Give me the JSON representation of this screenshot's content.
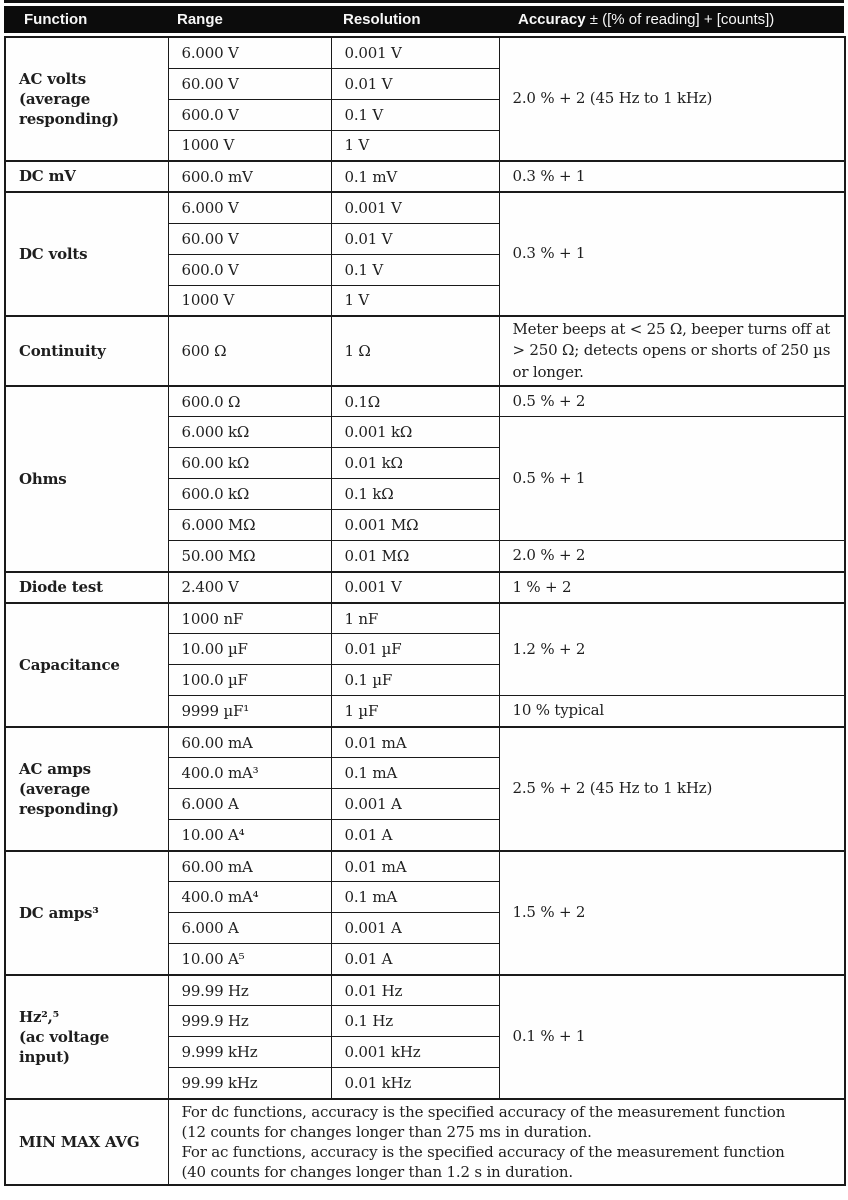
{
  "colors": {
    "header_bg": "#0c0c0c",
    "header_text": "#f7f7f7",
    "border": "#1a1a1a",
    "body_text": "#1e1e1e",
    "page_bg": "#ffffff"
  },
  "header": {
    "function": "Function",
    "range": "Range",
    "resolution": "Resolution",
    "accuracy_bold": "Accuracy",
    "accuracy_rest": "± ([% of reading] + [counts])"
  },
  "table": {
    "sections": [
      {
        "function": "AC volts (average responding)",
        "rows": [
          {
            "range": "6.000 V",
            "resolution": "0.001 V"
          },
          {
            "range": "60.00 V",
            "resolution": "0.01 V"
          },
          {
            "range": "600.0 V",
            "resolution": "0.1 V"
          },
          {
            "range": "1000 V",
            "resolution": "1 V"
          }
        ],
        "accuracy": [
          {
            "text": "2.0 % + 2 (45 Hz to 1 kHz)",
            "span": 4
          }
        ]
      },
      {
        "function": "DC mV",
        "rows": [
          {
            "range": "600.0 mV",
            "resolution": "0.1 mV"
          }
        ],
        "accuracy": [
          {
            "text": "0.3 % + 1",
            "span": 1
          }
        ]
      },
      {
        "function": "DC volts",
        "rows": [
          {
            "range": "6.000 V",
            "resolution": "0.001 V"
          },
          {
            "range": "60.00 V",
            "resolution": "0.01 V"
          },
          {
            "range": "600.0 V",
            "resolution": "0.1 V"
          },
          {
            "range": "1000 V",
            "resolution": "1 V"
          }
        ],
        "accuracy": [
          {
            "text": "0.3 % + 1",
            "span": 4
          }
        ]
      },
      {
        "function": "Continuity",
        "rows": [
          {
            "range": "600 Ω",
            "resolution": "1 Ω"
          }
        ],
        "accuracy": [
          {
            "text": "Meter beeps at < 25 Ω, beeper turns off at > 250 Ω; detects opens or shorts of 250 µs or longer.",
            "span": 1
          }
        ]
      },
      {
        "function": "Ohms",
        "rows": [
          {
            "range": "600.0 Ω",
            "resolution": "0.1Ω"
          },
          {
            "range": "6.000 kΩ",
            "resolution": "0.001 kΩ"
          },
          {
            "range": "60.00 kΩ",
            "resolution": "0.01 kΩ"
          },
          {
            "range": "600.0 kΩ",
            "resolution": "0.1 kΩ"
          },
          {
            "range": "6.000 MΩ",
            "resolution": "0.001 MΩ"
          },
          {
            "range": "50.00 MΩ",
            "resolution": "0.01 MΩ"
          }
        ],
        "accuracy": [
          {
            "text": "0.5 % + 2",
            "span": 1
          },
          {
            "text": "0.5 % + 1",
            "span": 4
          },
          {
            "text": "2.0 % + 2",
            "span": 1
          }
        ]
      },
      {
        "function": "Diode test",
        "rows": [
          {
            "range": "2.400 V",
            "resolution": "0.001 V"
          }
        ],
        "accuracy": [
          {
            "text": "1 % + 2",
            "span": 1
          }
        ]
      },
      {
        "function": "Capacitance",
        "rows": [
          {
            "range": "1000 nF",
            "resolution": "1 nF"
          },
          {
            "range": "10.00 µF",
            "resolution": "0.01 µF"
          },
          {
            "range": "100.0 µF",
            "resolution": "0.1 µF"
          },
          {
            "range": "9999 µF¹",
            "resolution": "1 µF"
          }
        ],
        "accuracy": [
          {
            "text": "1.2 % + 2",
            "span": 3
          },
          {
            "text": "10 % typical",
            "span": 1
          }
        ]
      },
      {
        "function": "AC amps (average responding)",
        "rows": [
          {
            "range": "60.00 mA",
            "resolution": "0.01 mA"
          },
          {
            "range": "400.0 mA³",
            "resolution": "0.1 mA"
          },
          {
            "range": "6.000 A",
            "resolution": "0.001 A"
          },
          {
            "range": "10.00 A⁴",
            "resolution": "0.01 A"
          }
        ],
        "accuracy": [
          {
            "text": "2.5 % + 2 (45 Hz to 1 kHz)",
            "span": 4
          }
        ]
      },
      {
        "function": "DC amps³",
        "rows": [
          {
            "range": "60.00 mA",
            "resolution": "0.01 mA"
          },
          {
            "range": "400.0 mA⁴",
            "resolution": "0.1 mA"
          },
          {
            "range": "6.000 A",
            "resolution": "0.001 A"
          },
          {
            "range": "10.00 A⁵",
            "resolution": "0.01 A"
          }
        ],
        "accuracy": [
          {
            "text": "1.5 % + 2",
            "span": 4
          }
        ]
      },
      {
        "function": "Hz²,⁵\n(ac voltage input)",
        "rows": [
          {
            "range": "99.99 Hz",
            "resolution": "0.01 Hz"
          },
          {
            "range": "999.9 Hz",
            "resolution": "0.1 Hz"
          },
          {
            "range": "9.999 kHz",
            "resolution": "0.001 kHz"
          },
          {
            "range": "99.99 kHz",
            "resolution": "0.01 kHz"
          }
        ],
        "accuracy": [
          {
            "text": "0.1 % + 1",
            "span": 4
          }
        ]
      },
      {
        "function": "MIN MAX AVG",
        "wide_text": [
          "For dc functions, accuracy is the specified accuracy of the measurement function",
          "(12 counts for changes longer than 275 ms in duration.",
          "For ac functions, accuracy is the specified accuracy of the measurement function",
          "(40 counts for changes longer than 1.2 s in duration."
        ]
      }
    ]
  }
}
